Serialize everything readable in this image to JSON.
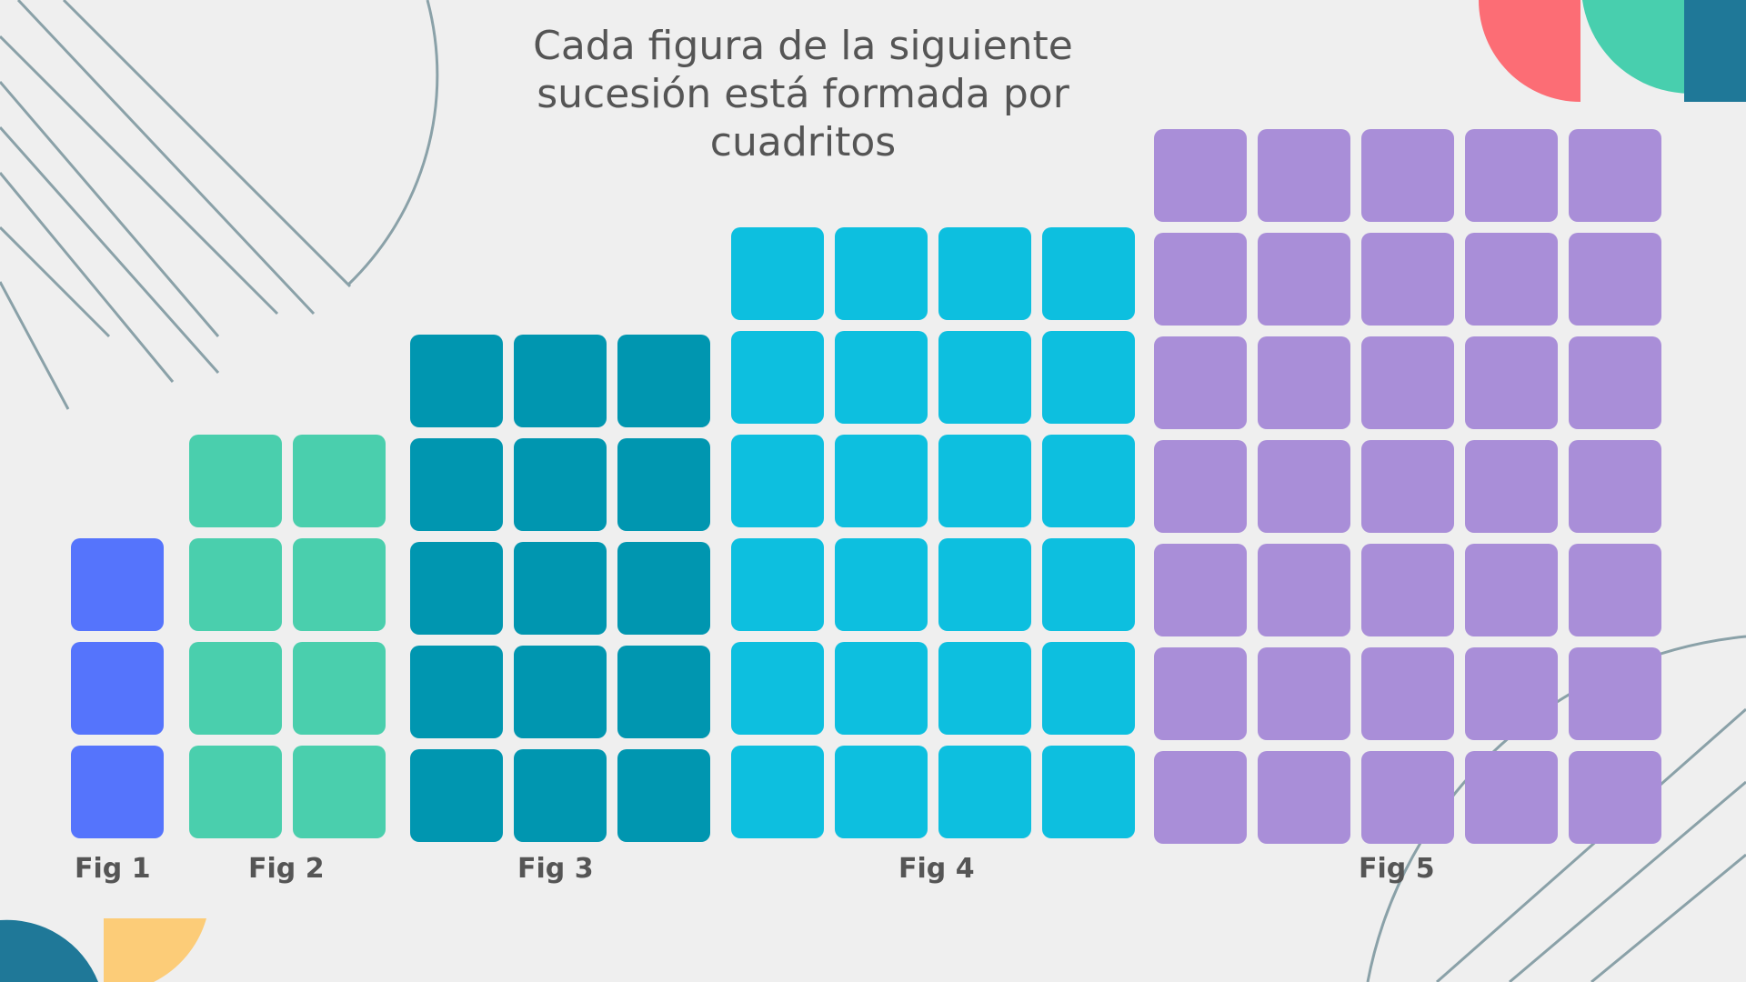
{
  "title": {
    "line1": "Cada figura de la siguiente",
    "line2": "sucesión está formada por",
    "line3": "cuadritos"
  },
  "figures": [
    {
      "label": "Fig 1",
      "cols": 1,
      "rows": 3,
      "color": "#5574fc"
    },
    {
      "label": "Fig 2",
      "cols": 2,
      "rows": 4,
      "color": "#4acfad"
    },
    {
      "label": "Fig 3",
      "cols": 3,
      "rows": 5,
      "color": "#0096b0"
    },
    {
      "label": "Fig 4",
      "cols": 4,
      "rows": 6,
      "color": "#0dbfdf"
    },
    {
      "label": "Fig 5",
      "cols": 5,
      "rows": 7,
      "color": "#a98ed8"
    }
  ],
  "decor_colors": {
    "line": "#8aa1a8",
    "coral": "#fc6d75",
    "teal": "#48cfae",
    "dark_blue": "#1f7898",
    "yellow": "#fccc78"
  }
}
